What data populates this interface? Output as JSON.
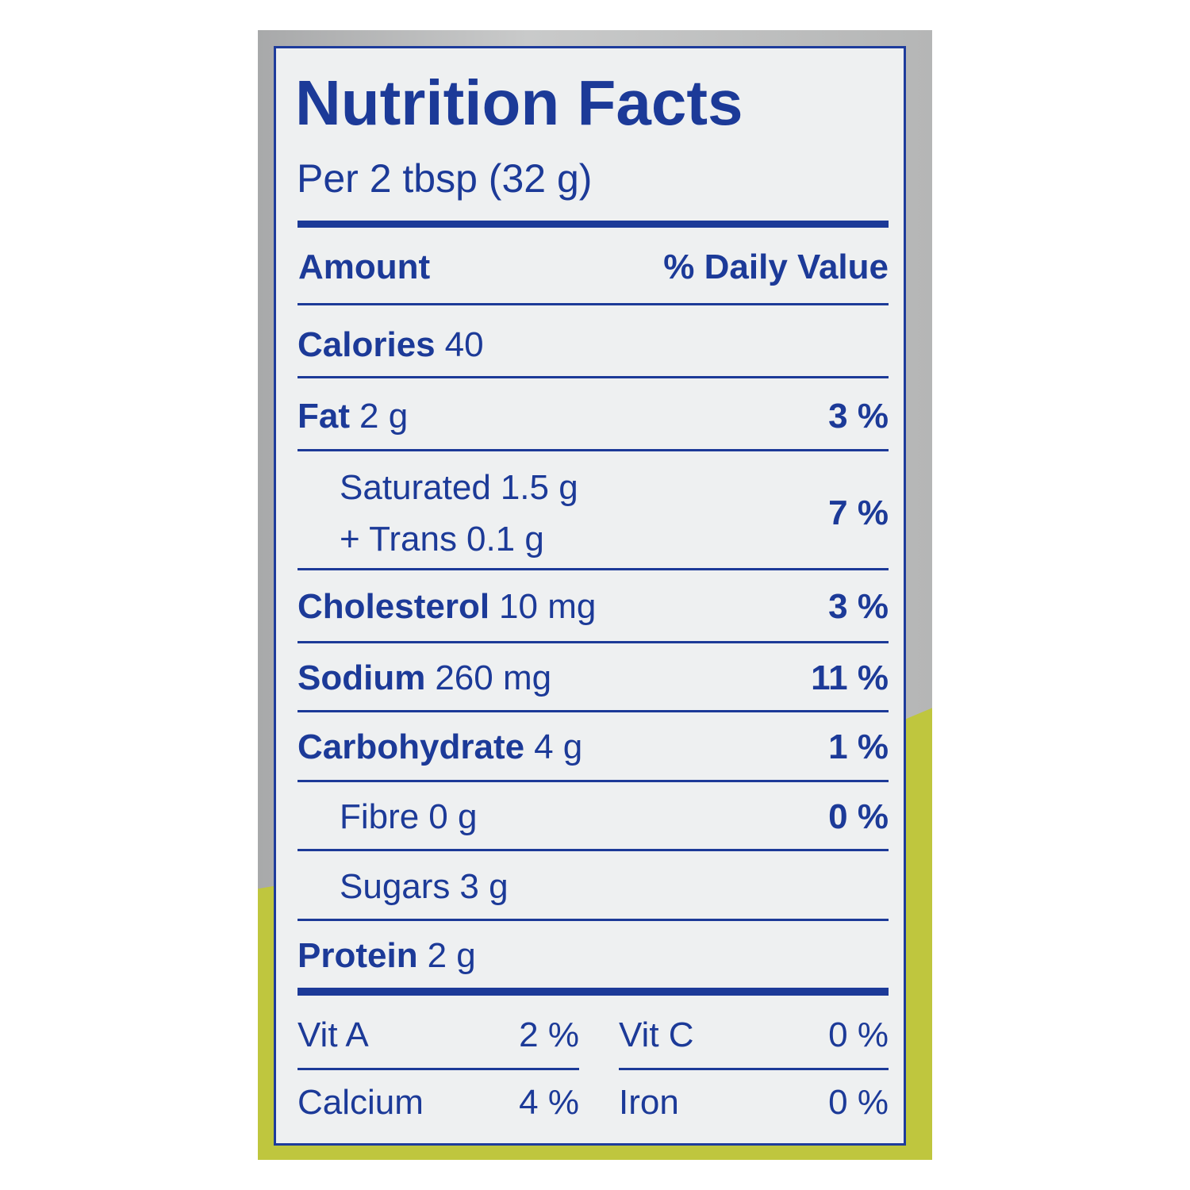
{
  "header": {
    "title": "Nutrition Facts",
    "serving": "Per 2 tbsp (32 g)"
  },
  "columns": {
    "amount": "Amount",
    "daily_value": "% Daily Value"
  },
  "rows": [
    {
      "name": "Calories",
      "amount": "40"
    },
    {
      "name": "Fat",
      "amount": "2 g",
      "daily_value": "3 %"
    },
    {
      "name": "Saturated",
      "amount": "1.5 g",
      "name2": "+ Trans",
      "amount2": "0.1 g",
      "daily_value": "7 %"
    },
    {
      "name": "Cholesterol",
      "amount": "10 mg",
      "daily_value": "3 %"
    },
    {
      "name": "Sodium",
      "amount": "260 mg",
      "daily_value": "11 %"
    },
    {
      "name": "Carbohydrate",
      "amount": "4 g",
      "daily_value": "1 %"
    },
    {
      "name": "Fibre",
      "amount": "0 g",
      "daily_value": "0 %"
    },
    {
      "name": "Sugars",
      "amount": "3 g"
    },
    {
      "name": "Protein",
      "amount": "2 g"
    }
  ],
  "vitamins": [
    [
      {
        "name": "Vit A",
        "daily_value": "2 %"
      },
      {
        "name": "Vit C",
        "daily_value": "0 %"
      }
    ],
    [
      {
        "name": "Calcium",
        "daily_value": "4 %"
      },
      {
        "name": "Iron",
        "daily_value": "0 %"
      }
    ]
  ]
}
